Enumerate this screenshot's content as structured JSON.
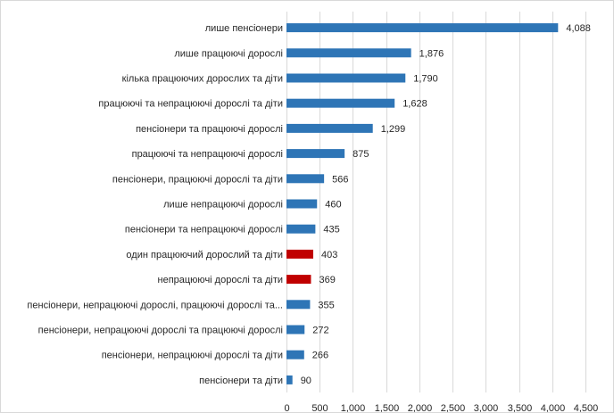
{
  "chart_data": {
    "type": "bar",
    "orientation": "horizontal",
    "categories": [
      "лише пенсіонери",
      "лише працюючі дорослі",
      "кілька працюючих дорослих та діти",
      "працюючі та непрацюючі дорослі та діти",
      "пенсіонери та працюючі дорослі",
      "працюючі та непрацюючі дорослі",
      "пенсіонери, працюючі дорослі та діти",
      "лише непрацюючі дорослі",
      "пенсіонери та непрацюючі дорослі",
      "один працюючий дорослий та діти",
      "непрацюючі дорослі та діти",
      "пенсіонери, непрацюючі дорослі, працюючі дорослі та...",
      "пенсіонери, непрацюючі дорослі та працюючі дорослі",
      "пенсіонери, непрацюючі дорослі та діти",
      "пенсіонери та діти"
    ],
    "values": [
      4088,
      1876,
      1790,
      1628,
      1299,
      875,
      566,
      460,
      435,
      403,
      369,
      355,
      272,
      266,
      90
    ],
    "value_labels": [
      "4,088",
      "1,876",
      "1,790",
      "1,628",
      "1,299",
      "875",
      "566",
      "460",
      "435",
      "403",
      "369",
      "355",
      "272",
      "266",
      "90"
    ],
    "bar_colors": [
      "#2e75b6",
      "#2e75b6",
      "#2e75b6",
      "#2e75b6",
      "#2e75b6",
      "#2e75b6",
      "#2e75b6",
      "#2e75b6",
      "#2e75b6",
      "#c00000",
      "#c00000",
      "#2e75b6",
      "#2e75b6",
      "#2e75b6",
      "#2e75b6"
    ],
    "xlim": [
      0,
      4500
    ],
    "x_ticks": [
      0,
      500,
      1000,
      1500,
      2000,
      2500,
      3000,
      3500,
      4000,
      4500
    ],
    "x_tick_labels": [
      "0",
      "500",
      "1,000",
      "1,500",
      "2,000",
      "2,500",
      "3,000",
      "3,500",
      "4,000",
      "4,500"
    ],
    "grid": "vertical",
    "title": "",
    "xlabel": "",
    "ylabel": ""
  }
}
